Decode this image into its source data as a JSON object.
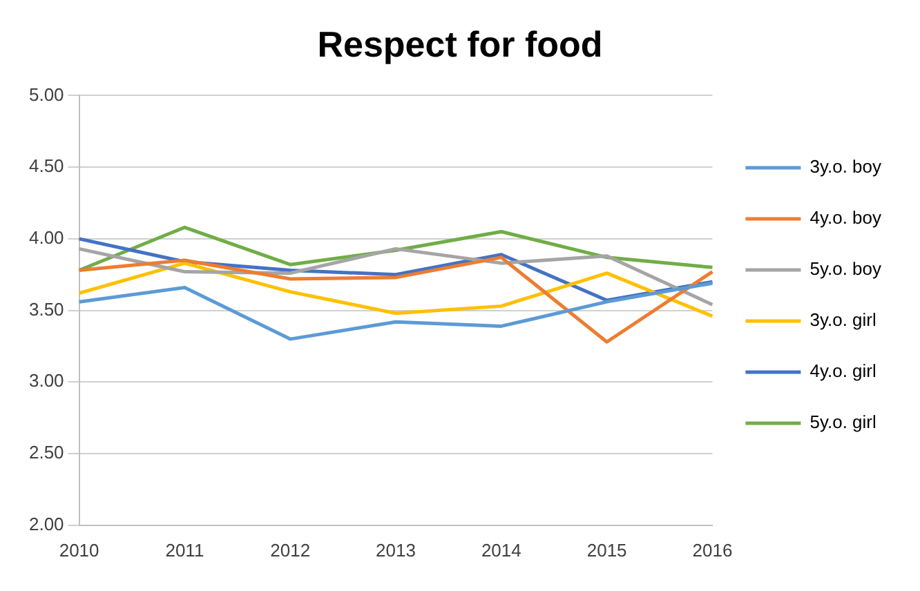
{
  "chart_data": {
    "type": "line",
    "title": "Respect for food",
    "categories": [
      "2010",
      "2011",
      "2012",
      "2013",
      "2014",
      "2015",
      "2016"
    ],
    "series": [
      {
        "name": "3y.o. boy",
        "color": "#5b9bd5",
        "values": [
          3.56,
          3.66,
          3.3,
          3.42,
          3.39,
          3.56,
          3.69
        ]
      },
      {
        "name": "4y.o. boy",
        "color": "#ed7d31",
        "values": [
          3.78,
          3.85,
          3.72,
          3.73,
          3.87,
          3.28,
          3.77
        ]
      },
      {
        "name": "5y.o. boy",
        "color": "#a5a5a5",
        "values": [
          3.93,
          3.77,
          3.76,
          3.93,
          3.83,
          3.88,
          3.54
        ]
      },
      {
        "name": "3y.o. girl",
        "color": "#ffc000",
        "values": [
          3.62,
          3.83,
          3.63,
          3.48,
          3.53,
          3.76,
          3.46
        ]
      },
      {
        "name": "4y.o. girl",
        "color": "#4472c4",
        "values": [
          4.0,
          3.84,
          3.78,
          3.75,
          3.89,
          3.57,
          3.7
        ]
      },
      {
        "name": "5y.o. girl",
        "color": "#70ad47",
        "values": [
          3.78,
          4.08,
          3.82,
          3.92,
          4.05,
          3.87,
          3.8
        ]
      }
    ],
    "ylim": [
      2,
      5
    ],
    "yticks": [
      {
        "value": 2,
        "label": "2.00"
      },
      {
        "value": 2.5,
        "label": "2.50"
      },
      {
        "value": 3,
        "label": "3.00"
      },
      {
        "value": 3.5,
        "label": "3.50"
      },
      {
        "value": 4,
        "label": "4.00"
      },
      {
        "value": 4.5,
        "label": "4.50"
      },
      {
        "value": 5,
        "label": "5.00"
      }
    ],
    "grid": "y",
    "legend": "right",
    "marker": "none",
    "line_style": "solid"
  }
}
